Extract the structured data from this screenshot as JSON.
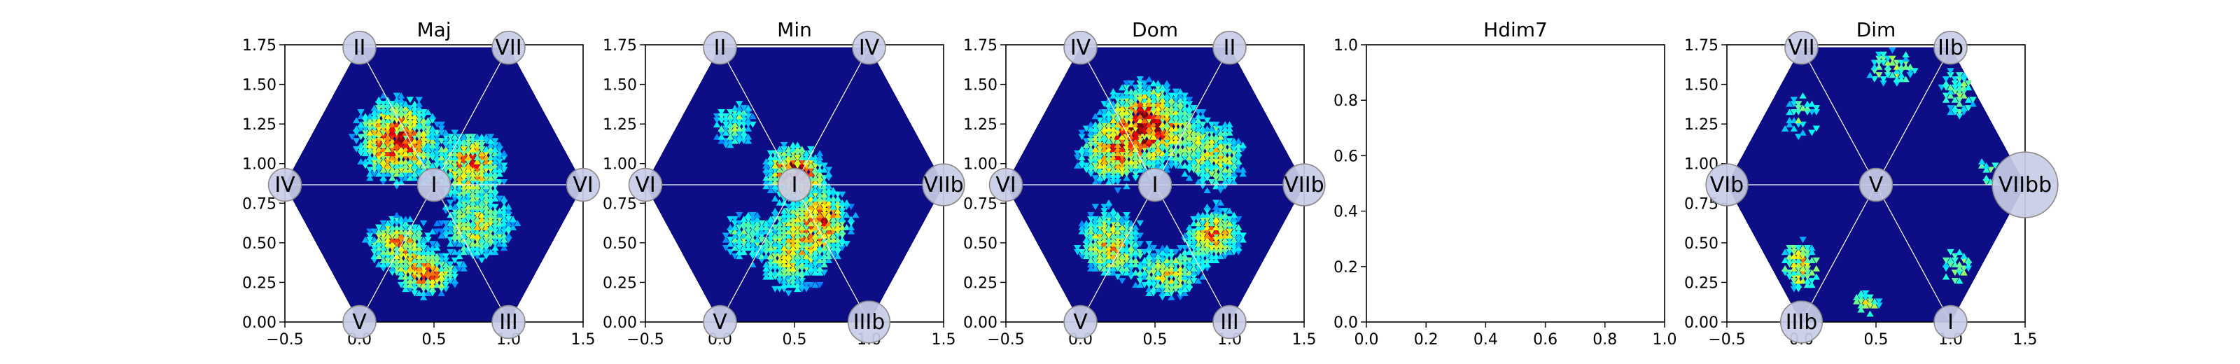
{
  "colors": {
    "hex_background": "#0d0d85",
    "hex_edge": "#000080",
    "node_fill": "#c8cce6",
    "node_stroke": "#8a8a8a",
    "grid_line": "#ffffff"
  },
  "chart_data": [
    {
      "type": "heatmap",
      "title": "Maj",
      "xlim": [
        -0.5,
        1.5
      ],
      "ylim": [
        0.0,
        1.75
      ],
      "xticks": [
        "−0.5",
        "0.0",
        "0.5",
        "1.0",
        "1.5"
      ],
      "yticks": [
        "0.00",
        "0.25",
        "0.50",
        "0.75",
        "1.00",
        "1.25",
        "1.50",
        "1.75"
      ],
      "nodes": [
        {
          "label": "II",
          "x": 0.0,
          "y": 1.732,
          "r": 0.11
        },
        {
          "label": "VII",
          "x": 1.0,
          "y": 1.732,
          "r": 0.11
        },
        {
          "label": "IV",
          "x": -0.5,
          "y": 0.866,
          "r": 0.11
        },
        {
          "label": "I",
          "x": 0.5,
          "y": 0.866,
          "r": 0.11
        },
        {
          "label": "VI",
          "x": 1.5,
          "y": 0.866,
          "r": 0.11
        },
        {
          "label": "V",
          "x": 0.0,
          "y": 0.0,
          "r": 0.11
        },
        {
          "label": "III",
          "x": 1.0,
          "y": 0.0,
          "r": 0.11
        }
      ],
      "hotspots": [
        {
          "x": 0.25,
          "y": 1.15,
          "sx": 0.16,
          "sy": 0.16,
          "w": 1.0
        },
        {
          "x": 0.75,
          "y": 1.0,
          "sx": 0.14,
          "sy": 0.12,
          "w": 0.8
        },
        {
          "x": 0.25,
          "y": 0.5,
          "sx": 0.12,
          "sy": 0.1,
          "w": 0.8
        },
        {
          "x": 0.45,
          "y": 0.3,
          "sx": 0.12,
          "sy": 0.08,
          "w": 0.8
        },
        {
          "x": 0.8,
          "y": 0.6,
          "sx": 0.16,
          "sy": 0.14,
          "w": 0.6
        }
      ],
      "seed": 11
    },
    {
      "type": "heatmap",
      "title": "Min",
      "xlim": [
        -0.5,
        1.5
      ],
      "ylim": [
        0.0,
        1.75
      ],
      "xticks": [
        "−0.5",
        "0.0",
        "0.5",
        "1.0",
        "1.5"
      ],
      "yticks": [
        "0.00",
        "0.25",
        "0.50",
        "0.75",
        "1.00",
        "1.25",
        "1.50",
        "1.75"
      ],
      "nodes": [
        {
          "label": "II",
          "x": 0.0,
          "y": 1.732,
          "r": 0.11
        },
        {
          "label": "IV",
          "x": 1.0,
          "y": 1.732,
          "r": 0.11
        },
        {
          "label": "VI",
          "x": -0.5,
          "y": 0.866,
          "r": 0.11
        },
        {
          "label": "I",
          "x": 0.5,
          "y": 0.866,
          "r": 0.11
        },
        {
          "label": "VIIb",
          "x": 1.5,
          "y": 0.866,
          "r": 0.14
        },
        {
          "label": "V",
          "x": 0.0,
          "y": 0.0,
          "r": 0.11
        },
        {
          "label": "IIIb",
          "x": 1.0,
          "y": 0.0,
          "r": 0.14
        }
      ],
      "hotspots": [
        {
          "x": 0.5,
          "y": 0.95,
          "sx": 0.12,
          "sy": 0.1,
          "w": 1.0
        },
        {
          "x": 0.5,
          "y": 0.45,
          "sx": 0.16,
          "sy": 0.18,
          "w": 0.6
        },
        {
          "x": 0.7,
          "y": 0.65,
          "sx": 0.12,
          "sy": 0.12,
          "w": 0.7
        },
        {
          "x": 0.1,
          "y": 1.25,
          "sx": 0.1,
          "sy": 0.1,
          "w": 0.5
        },
        {
          "x": 0.15,
          "y": 0.55,
          "sx": 0.1,
          "sy": 0.1,
          "w": 0.4
        }
      ],
      "seed": 23
    },
    {
      "type": "heatmap",
      "title": "Dom",
      "xlim": [
        -0.5,
        1.5
      ],
      "ylim": [
        0.0,
        1.75
      ],
      "xticks": [
        "−0.5",
        "0.0",
        "0.5",
        "1.0",
        "1.5"
      ],
      "yticks": [
        "0.00",
        "0.25",
        "0.50",
        "0.75",
        "1.00",
        "1.25",
        "1.50",
        "1.75"
      ],
      "nodes": [
        {
          "label": "IV",
          "x": 0.0,
          "y": 1.732,
          "r": 0.11
        },
        {
          "label": "II",
          "x": 1.0,
          "y": 1.732,
          "r": 0.11
        },
        {
          "label": "VI",
          "x": -0.5,
          "y": 0.866,
          "r": 0.11
        },
        {
          "label": "I",
          "x": 0.5,
          "y": 0.866,
          "r": 0.11
        },
        {
          "label": "VIIb",
          "x": 1.5,
          "y": 0.866,
          "r": 0.14
        },
        {
          "label": "V",
          "x": 0.0,
          "y": 0.0,
          "r": 0.11
        },
        {
          "label": "III",
          "x": 1.0,
          "y": 0.0,
          "r": 0.11
        }
      ],
      "hotspots": [
        {
          "x": 0.45,
          "y": 1.25,
          "sx": 0.18,
          "sy": 0.16,
          "w": 1.0
        },
        {
          "x": 0.2,
          "y": 1.05,
          "sx": 0.14,
          "sy": 0.12,
          "w": 0.6
        },
        {
          "x": 0.9,
          "y": 1.05,
          "sx": 0.14,
          "sy": 0.14,
          "w": 0.6
        },
        {
          "x": 0.2,
          "y": 0.5,
          "sx": 0.14,
          "sy": 0.14,
          "w": 0.7
        },
        {
          "x": 0.9,
          "y": 0.55,
          "sx": 0.12,
          "sy": 0.1,
          "w": 0.8
        },
        {
          "x": 0.6,
          "y": 0.3,
          "sx": 0.14,
          "sy": 0.1,
          "w": 0.6
        }
      ],
      "seed": 37
    },
    {
      "type": "heatmap",
      "title": "Hdim7",
      "empty": true,
      "xlim": [
        0.0,
        1.0
      ],
      "ylim": [
        0.0,
        1.0
      ],
      "xticks": [
        "0.0",
        "0.2",
        "0.4",
        "0.6",
        "0.8",
        "1.0"
      ],
      "yticks": [
        "0.0",
        "0.2",
        "0.4",
        "0.6",
        "0.8",
        "1.0"
      ]
    },
    {
      "type": "heatmap",
      "title": "Dim",
      "xlim": [
        -0.5,
        1.5
      ],
      "ylim": [
        0.0,
        1.75
      ],
      "xticks": [
        "−0.5",
        "0.0",
        "0.5",
        "1.0",
        "1.5"
      ],
      "yticks": [
        "0.00",
        "0.25",
        "0.50",
        "0.75",
        "1.00",
        "1.25",
        "1.50",
        "1.75"
      ],
      "nodes": [
        {
          "label": "VII",
          "x": 0.0,
          "y": 1.732,
          "r": 0.11
        },
        {
          "label": "IIb",
          "x": 1.0,
          "y": 1.732,
          "r": 0.11
        },
        {
          "label": "VIb",
          "x": -0.5,
          "y": 0.866,
          "r": 0.14
        },
        {
          "label": "V",
          "x": 0.5,
          "y": 0.866,
          "r": 0.11
        },
        {
          "label": "VIIbb",
          "x": 1.5,
          "y": 0.866,
          "r": 0.22
        },
        {
          "label": "IIIb",
          "x": 0.0,
          "y": 0.0,
          "r": 0.14
        },
        {
          "label": "I",
          "x": 1.0,
          "y": 0.0,
          "r": 0.11
        }
      ],
      "hotspots": [
        {
          "x": 0.0,
          "y": 0.35,
          "sx": 0.1,
          "sy": 0.12,
          "w": 0.7
        },
        {
          "x": 0.45,
          "y": 0.12,
          "sx": 0.08,
          "sy": 0.06,
          "w": 0.6
        },
        {
          "x": 1.05,
          "y": 0.35,
          "sx": 0.1,
          "sy": 0.1,
          "w": 0.5
        },
        {
          "x": 0.6,
          "y": 1.6,
          "sx": 0.14,
          "sy": 0.1,
          "w": 0.5
        },
        {
          "x": 1.05,
          "y": 1.45,
          "sx": 0.1,
          "sy": 0.14,
          "w": 0.5
        },
        {
          "x": 0.0,
          "y": 1.3,
          "sx": 0.14,
          "sy": 0.16,
          "w": 0.4
        },
        {
          "x": 1.25,
          "y": 0.95,
          "sx": 0.08,
          "sy": 0.1,
          "w": 0.4
        }
      ],
      "sparse": true,
      "seed": 53
    }
  ]
}
